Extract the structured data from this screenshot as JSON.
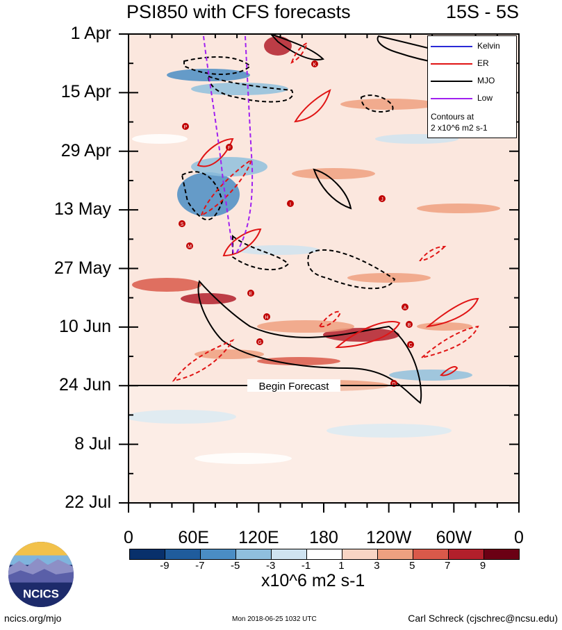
{
  "title": "PSI850 with CFS forecasts",
  "region": "15S - 5S",
  "chart_data": {
    "type": "heatmap",
    "title": "PSI850 with CFS forecasts",
    "region": "15S - 5S",
    "y_tick_labels": [
      "1 Apr",
      "15 Apr",
      "29 Apr",
      "13 May",
      "27 May",
      "10 Jun",
      "24 Jun",
      "8 Jul",
      "22 Jul"
    ],
    "y_tick_days": [
      0,
      14,
      28,
      42,
      56,
      70,
      84,
      98,
      112
    ],
    "y_range_days": [
      0,
      112
    ],
    "x_tick_labels": [
      "0",
      "60E",
      "120E",
      "180",
      "120W",
      "60W",
      "0"
    ],
    "x_tick_lon": [
      0,
      60,
      120,
      180,
      240,
      300,
      360
    ],
    "x_range": [
      0,
      360
    ],
    "begin_forecast_day": 84,
    "begin_forecast_label": "Begin Forecast",
    "colorbar": {
      "levels": [
        "-9",
        "-7",
        "-5",
        "-3",
        "-1",
        "1",
        "3",
        "5",
        "7",
        "9"
      ],
      "colors": [
        "#08306b",
        "#1f5c9c",
        "#4a8dc4",
        "#8fbfdd",
        "#cfe3f0",
        "#ffffff",
        "#f8d5c4",
        "#eea080",
        "#d9594a",
        "#b21f2b",
        "#6b0014"
      ],
      "units": "x10^6 m2 s-1"
    },
    "legend": {
      "entries": [
        {
          "name": "Kelvin",
          "color": "#2a2ad6",
          "dash": "solid"
        },
        {
          "name": "ER",
          "color": "#e01414",
          "dash": "solid"
        },
        {
          "name": "MJO",
          "color": "#000000",
          "dash": "solid"
        },
        {
          "name": "Low",
          "color": "#a020f0",
          "dash": "solid"
        }
      ],
      "note_line1": "Contours at",
      "note_line2": "2 x10^6 m2 s-1"
    },
    "cyclone_labels": [
      "K",
      "F",
      "J",
      "I",
      "S",
      "M",
      "E",
      "A",
      "B",
      "C",
      "G",
      "D",
      "H",
      "P"
    ]
  },
  "footer": {
    "left": "ncics.org/mjo",
    "middle": "Mon 2018-06-25 1032 UTC",
    "right": "Carl Schreck (cjschrec@ncsu.edu)"
  },
  "logo_text": "NCICS"
}
